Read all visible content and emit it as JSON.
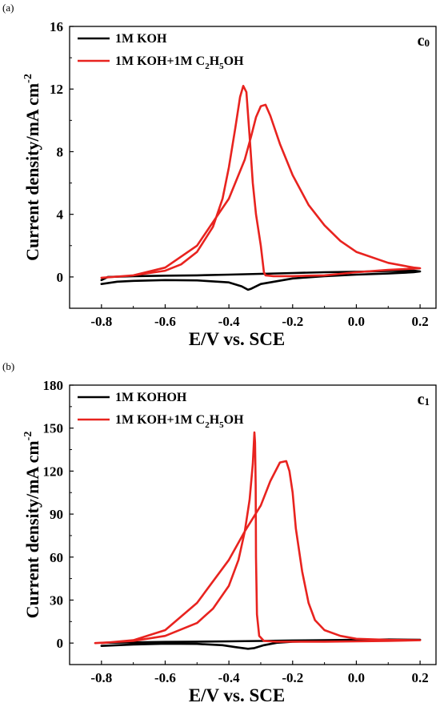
{
  "chart_data": [
    {
      "type": "line",
      "panel_label": "(a)",
      "corner_tag": "c",
      "corner_tag_sub": "0",
      "xlabel": "E/V vs. SCE",
      "ylabel": "Current density/mA cm",
      "ylabel_sup": "-2",
      "xlim": [
        -0.9,
        0.25
      ],
      "ylim": [
        -2,
        16
      ],
      "xticks": [
        "-0.8",
        "-0.6",
        "-0.4",
        "-0.2",
        "0.0",
        "0.2"
      ],
      "xtick_values": [
        -0.8,
        -0.6,
        -0.4,
        -0.2,
        0.0,
        0.2
      ],
      "yticks": [
        "0",
        "4",
        "8",
        "12",
        "16"
      ],
      "ytick_values": [
        0,
        4,
        8,
        12,
        16
      ],
      "legend_position": "top-left",
      "series": [
        {
          "name_parts": [
            [
              "1M KOH",
              ""
            ]
          ],
          "color": "#000000",
          "x": [
            -0.8,
            -0.75,
            -0.7,
            -0.6,
            -0.5,
            -0.4,
            -0.36,
            -0.34,
            -0.33,
            -0.3,
            -0.2,
            -0.1,
            0.0,
            0.1,
            0.18,
            0.2,
            0.18,
            0.1,
            0.0,
            -0.1,
            -0.2,
            -0.3,
            -0.4,
            -0.5,
            -0.6,
            -0.7,
            -0.78,
            -0.8
          ],
          "y": [
            -0.45,
            -0.3,
            -0.25,
            -0.2,
            -0.22,
            -0.35,
            -0.6,
            -0.82,
            -0.75,
            -0.45,
            -0.1,
            0.05,
            0.15,
            0.22,
            0.3,
            0.35,
            0.4,
            0.38,
            0.33,
            0.3,
            0.25,
            0.2,
            0.15,
            0.1,
            0.08,
            0.05,
            0.0,
            -0.2
          ]
        },
        {
          "name_parts": [
            [
              "1M KOH+1M C",
              ""
            ],
            [
              "2",
              "sub"
            ],
            [
              "H",
              ""
            ],
            [
              "5",
              "sub"
            ],
            [
              "OH",
              ""
            ]
          ],
          "color": "#e8231f",
          "x": [
            -0.8,
            -0.7,
            -0.6,
            -0.55,
            -0.5,
            -0.45,
            -0.42,
            -0.4,
            -0.38,
            -0.365,
            -0.355,
            -0.345,
            -0.335,
            -0.325,
            -0.315,
            -0.3,
            -0.29,
            -0.285,
            -0.275,
            -0.26,
            -0.24,
            -0.2,
            -0.15,
            -0.1,
            -0.05,
            0.0,
            0.1,
            0.2,
            0.18,
            0.1,
            0.0,
            -0.05,
            -0.1,
            -0.15,
            -0.2,
            -0.24,
            -0.27,
            -0.285,
            -0.3,
            -0.315,
            -0.33,
            -0.35,
            -0.4,
            -0.5,
            -0.6,
            -0.7,
            -0.8
          ],
          "y": [
            -0.05,
            0.1,
            0.4,
            0.8,
            1.6,
            3.2,
            5.0,
            7.0,
            9.5,
            11.5,
            12.2,
            11.8,
            9.0,
            6.0,
            4.0,
            2.0,
            0.3,
            0.1,
            0.08,
            0.05,
            0.05,
            0.05,
            0.08,
            0.1,
            0.2,
            0.3,
            0.45,
            0.55,
            0.6,
            0.9,
            1.6,
            2.3,
            3.3,
            4.6,
            6.5,
            8.5,
            10.3,
            11.0,
            10.9,
            10.2,
            9.0,
            7.5,
            5.0,
            2.0,
            0.6,
            0.1,
            -0.05
          ]
        }
      ]
    },
    {
      "type": "line",
      "panel_label": "(b)",
      "corner_tag": "c",
      "corner_tag_sub": "1",
      "xlabel": "E/V vs. SCE",
      "ylabel": "Current density/mA cm",
      "ylabel_sup": "-2",
      "xlim": [
        -0.9,
        0.25
      ],
      "ylim": [
        -15,
        180
      ],
      "xticks": [
        "-0.8",
        "-0.6",
        "-0.4",
        "-0.2",
        "0.0",
        "0.2"
      ],
      "xtick_values": [
        -0.8,
        -0.6,
        -0.4,
        -0.2,
        0.0,
        0.2
      ],
      "yticks": [
        "0",
        "30",
        "60",
        "90",
        "120",
        "150",
        "180"
      ],
      "ytick_values": [
        0,
        30,
        60,
        90,
        120,
        150,
        180
      ],
      "legend_position": "top-left",
      "series": [
        {
          "name_parts": [
            [
              "1M KOHOH",
              ""
            ]
          ],
          "color": "#000000",
          "x": [
            -0.8,
            -0.7,
            -0.6,
            -0.5,
            -0.42,
            -0.38,
            -0.34,
            -0.32,
            -0.29,
            -0.25,
            -0.2,
            -0.1,
            0.0,
            0.1,
            0.2,
            0.1,
            0.0,
            -0.1,
            -0.2,
            -0.3,
            -0.4,
            -0.5,
            -0.6,
            -0.7,
            -0.8
          ],
          "y": [
            -2.0,
            -1.0,
            -0.5,
            -0.6,
            -1.5,
            -2.8,
            -4.0,
            -3.5,
            -1.5,
            0.2,
            1.0,
            1.5,
            1.8,
            2.0,
            2.3,
            2.5,
            2.3,
            2.0,
            1.8,
            1.5,
            1.2,
            1.0,
            0.8,
            0.5,
            0.2
          ]
        },
        {
          "name_parts": [
            [
              "1M KOH+1M C",
              ""
            ],
            [
              "2",
              "sub"
            ],
            [
              "H",
              ""
            ],
            [
              "5",
              "sub"
            ],
            [
              "OH",
              ""
            ]
          ],
          "color": "#e8231f",
          "x": [
            -0.82,
            -0.7,
            -0.6,
            -0.5,
            -0.45,
            -0.4,
            -0.37,
            -0.35,
            -0.335,
            -0.325,
            -0.32,
            -0.318,
            -0.316,
            -0.315,
            -0.312,
            -0.305,
            -0.29,
            -0.25,
            -0.2,
            -0.1,
            0.0,
            0.1,
            0.2,
            0.1,
            0.0,
            -0.05,
            -0.1,
            -0.13,
            -0.15,
            -0.17,
            -0.19,
            -0.2,
            -0.21,
            -0.22,
            -0.24,
            -0.27,
            -0.3,
            -0.35,
            -0.4,
            -0.5,
            -0.6,
            -0.7,
            -0.8
          ],
          "y": [
            0.0,
            1.5,
            5,
            14,
            24,
            40,
            58,
            78,
            100,
            125,
            147,
            140,
            110,
            60,
            20,
            5,
            1.5,
            1.0,
            1.0,
            1.0,
            1.2,
            1.5,
            2.0,
            2.2,
            3.0,
            5.0,
            9.0,
            16,
            28,
            50,
            80,
            105,
            120,
            127,
            126,
            113,
            96,
            78,
            58,
            28,
            9,
            2,
            0.0
          ]
        }
      ]
    }
  ]
}
